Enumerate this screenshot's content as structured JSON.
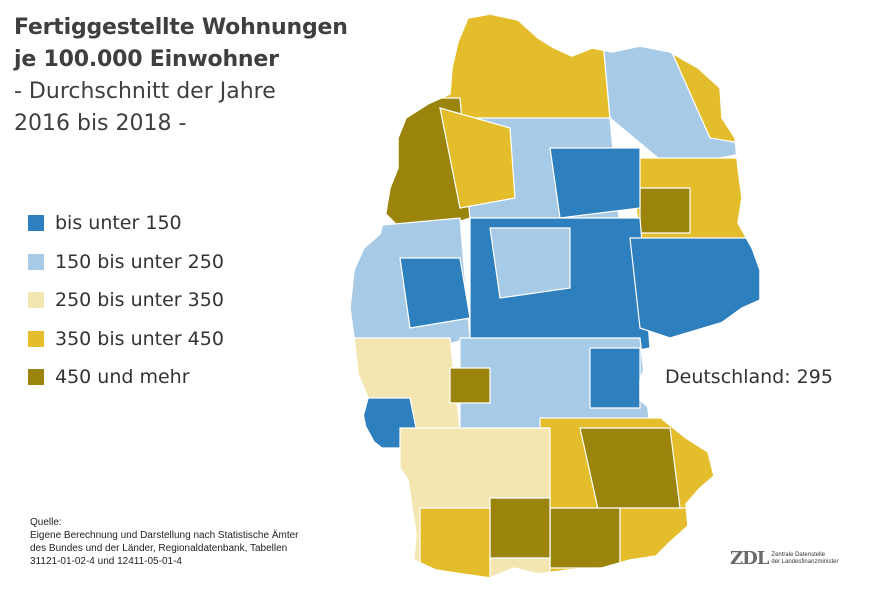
{
  "title": {
    "line1": "Fertiggestellte Wohnungen",
    "line2": "je 100.000 Einwohner",
    "line3": "- Durchschnitt der Jahre",
    "line4": "2016 bis 2018 -"
  },
  "legend": [
    {
      "label": "bis unter 150",
      "color": "#2e7fbd"
    },
    {
      "label": "150 bis unter 250",
      "color": "#a7cbe6"
    },
    {
      "label": "250 bis unter 350",
      "color": "#f4e6b0"
    },
    {
      "label": "350 bis unter 450",
      "color": "#e3bd2b"
    },
    {
      "label": "450 und mehr",
      "color": "#9b840c"
    }
  ],
  "national_total": "Deutschland: 295",
  "source": {
    "heading": "Quelle:",
    "lines": [
      "Eigene Berechnung und Darstellung nach Statistische Ämter",
      "des Bundes und der Länder, Regionaldatenbank, Tabellen",
      "31121-01-02-4 und 12411-05-01-4"
    ]
  },
  "logo": {
    "mark": "ZDL",
    "line1": "Zentrale Datenstelle",
    "line2": "der Landesfinanzminister"
  },
  "colors": {
    "border": "#ffffff",
    "title": "#3f3f3f",
    "text": "#333333"
  }
}
